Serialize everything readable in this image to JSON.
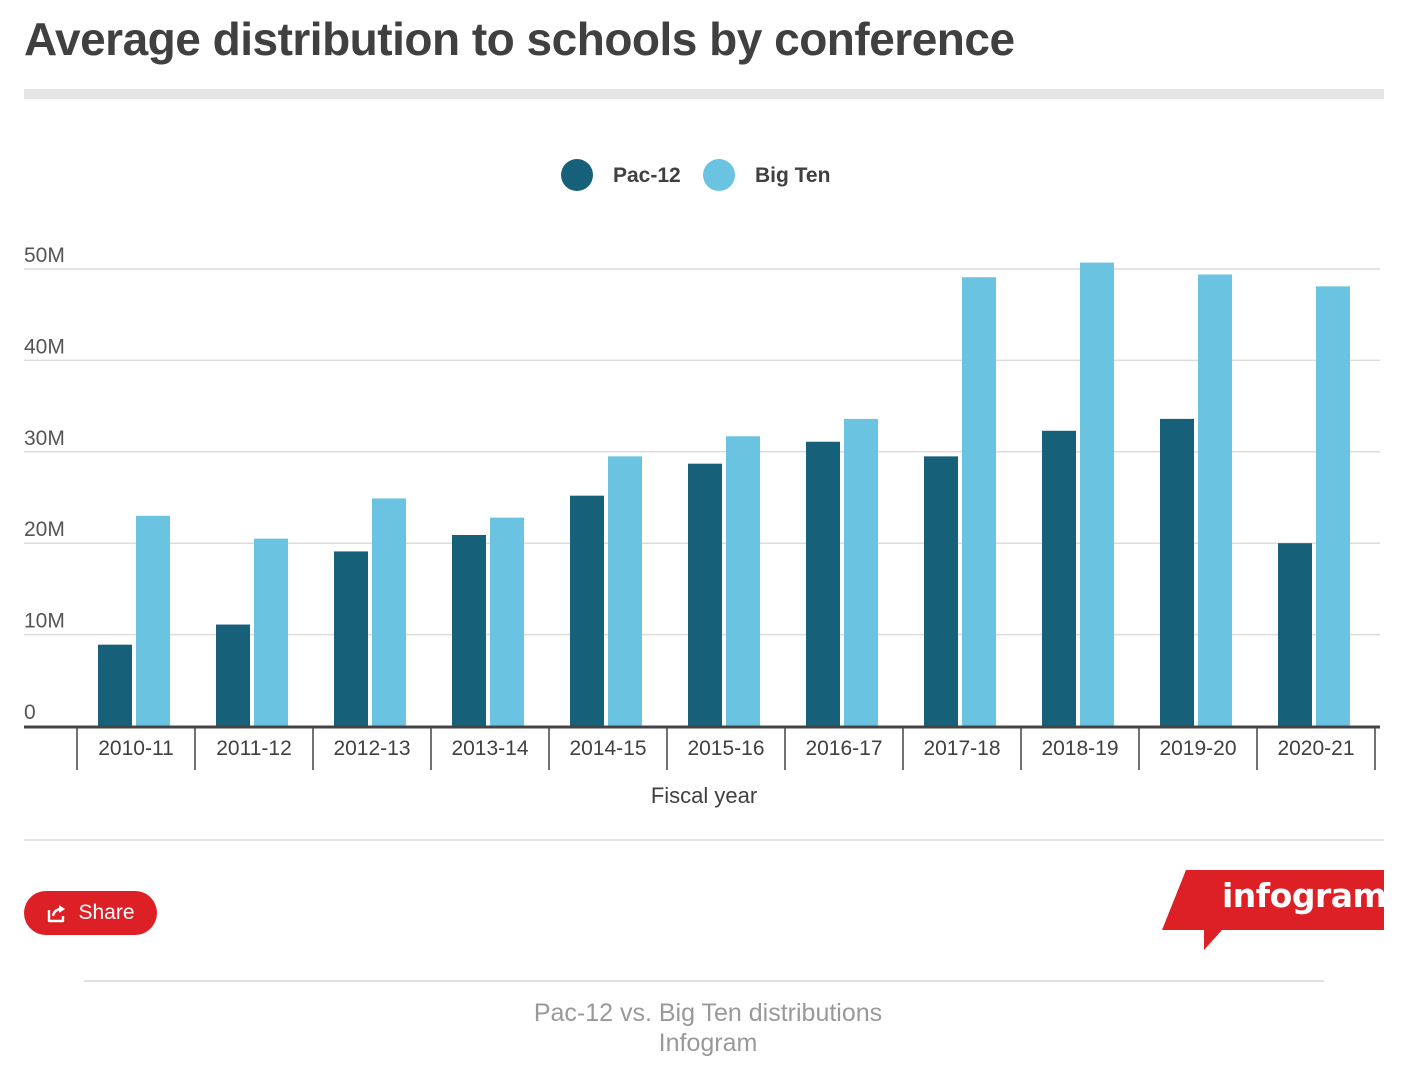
{
  "title": "Average distribution to schools by conference",
  "chart_data": {
    "type": "bar",
    "xlabel": "Fiscal year",
    "ylabel": "",
    "ylim": [
      0,
      50000000
    ],
    "yticks": [
      {
        "value": 0,
        "label": "0"
      },
      {
        "value": 10000000,
        "label": "10M"
      },
      {
        "value": 20000000,
        "label": "20M"
      },
      {
        "value": 30000000,
        "label": "30M"
      },
      {
        "value": 40000000,
        "label": "40M"
      },
      {
        "value": 50000000,
        "label": "50M"
      }
    ],
    "grid": true,
    "legend": "top-center",
    "categories": [
      "2010-11",
      "2011-12",
      "2012-13",
      "2013-14",
      "2014-15",
      "2015-16",
      "2016-17",
      "2017-18",
      "2018-19",
      "2019-20",
      "2020-21"
    ],
    "series": [
      {
        "name": "Pac-12",
        "color": "#176079",
        "values": [
          8900000,
          11100000,
          19100000,
          20900000,
          25200000,
          28700000,
          31100000,
          29500000,
          32300000,
          33600000,
          20000000
        ]
      },
      {
        "name": "Big Ten",
        "color": "#6bc3e2",
        "values": [
          23000000,
          20500000,
          24900000,
          22800000,
          29500000,
          31700000,
          33600000,
          49100000,
          50700000,
          49400000,
          48100000
        ]
      }
    ]
  },
  "share": {
    "label": "Share",
    "icon": "share-icon"
  },
  "brand": {
    "text": "infogram",
    "color": "#dd1f26"
  },
  "caption": {
    "line1": "Pac-12 vs. Big Ten distributions",
    "line2": "Infogram"
  }
}
